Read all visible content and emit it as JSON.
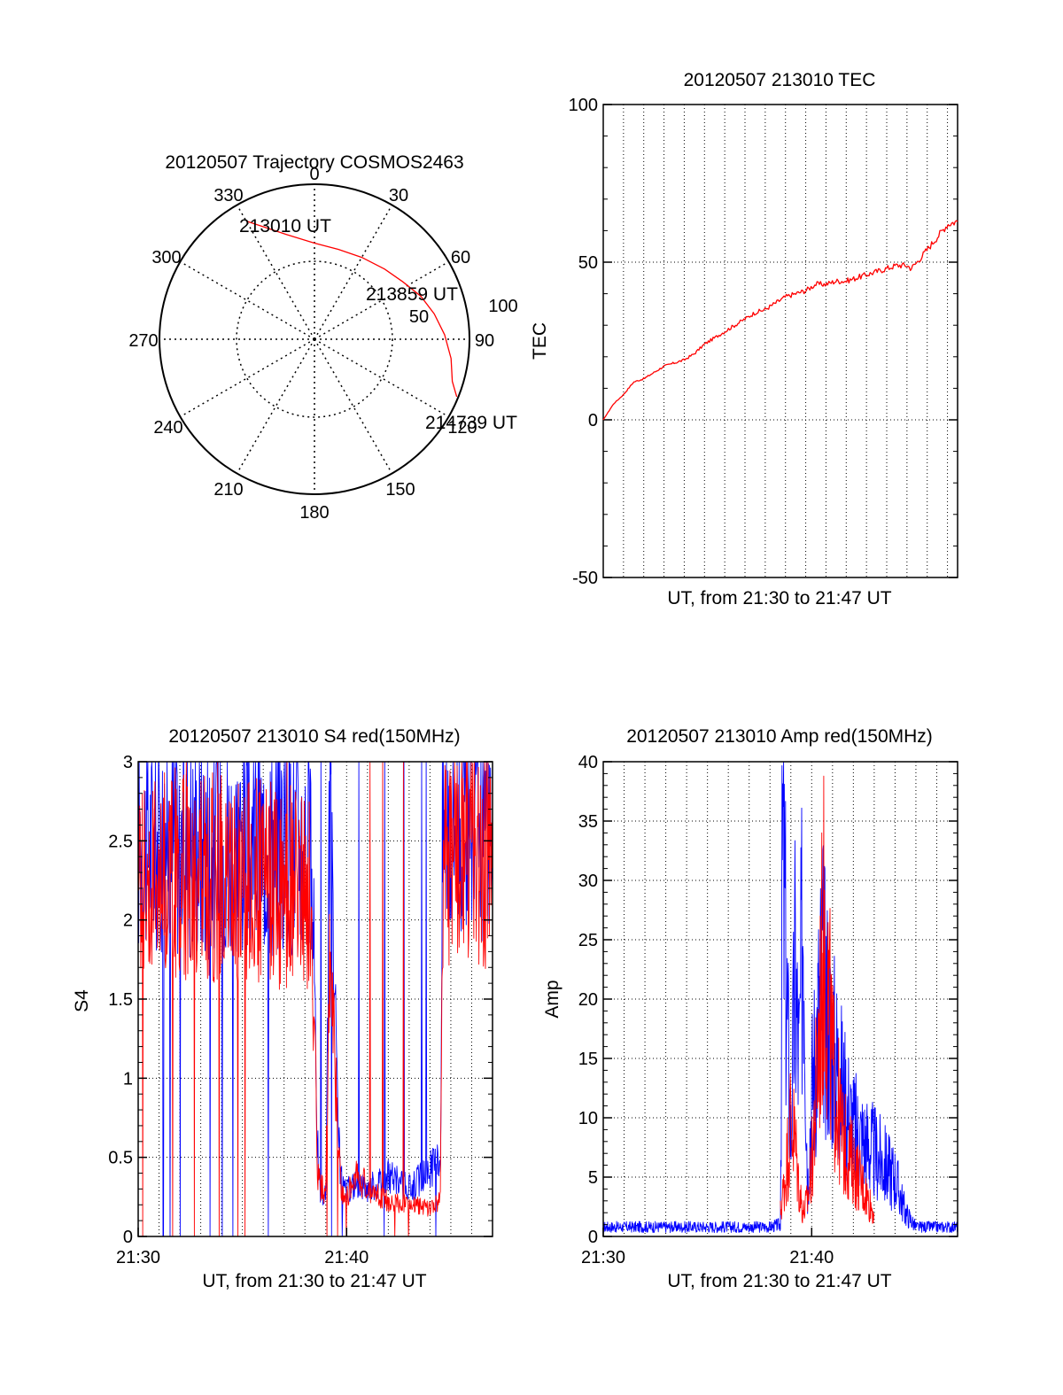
{
  "colors": {
    "red": "#ff0000",
    "blue": "#0000ff",
    "axis": "#000000",
    "grid": "#000000"
  },
  "chart_data": [
    {
      "id": "trajectory",
      "type": "polar",
      "title": "20120507 Trajectory COSMOS2463",
      "angle_labels": [
        "0",
        "30",
        "60",
        "90",
        "120",
        "150",
        "180",
        "210",
        "240",
        "270",
        "300",
        "330"
      ],
      "radial_labels": [
        "50",
        "100"
      ],
      "trajectory": {
        "series_color": "red",
        "points": [
          [
            330,
            88
          ],
          [
            345,
            70
          ],
          [
            0,
            62
          ],
          [
            15,
            60
          ],
          [
            30,
            61
          ],
          [
            45,
            64
          ],
          [
            57,
            68
          ],
          [
            68,
            74
          ],
          [
            78,
            79
          ],
          [
            88,
            84
          ],
          [
            98,
            89
          ],
          [
            107,
            93
          ],
          [
            112,
            99
          ]
        ],
        "annotations": [
          {
            "text": "213010 UT",
            "az": 330,
            "r": 88
          },
          {
            "text": "213859 UT",
            "az": 57,
            "r": 68
          },
          {
            "text": "214739 UT",
            "az": 112,
            "r": 99
          }
        ]
      }
    },
    {
      "id": "tec",
      "type": "line",
      "title": "20120507 213010 TEC",
      "xlabel": "UT, from 21:30 to 21:47 UT",
      "ylabel": "TEC",
      "xlim": [
        0,
        17.5
      ],
      "ylim": [
        -50,
        100
      ],
      "yticks": [
        "-50",
        "0",
        "50",
        "100"
      ],
      "series": [
        {
          "color": "red",
          "x": [
            0,
            0.5,
            1,
            1.5,
            2,
            2.5,
            3,
            3.5,
            4,
            4.5,
            5,
            5.5,
            6,
            6.5,
            7,
            7.5,
            8,
            8.5,
            9,
            9.5,
            10,
            10.5,
            11,
            11.5,
            12,
            12.5,
            13,
            13.5,
            14,
            14.5,
            15,
            15.2,
            15.5,
            16,
            16.5,
            17,
            17.5
          ],
          "y": [
            0,
            5,
            8,
            12,
            13,
            15,
            17,
            18,
            19,
            21,
            24,
            26,
            28,
            30,
            32,
            34,
            35,
            37,
            39,
            40,
            41,
            43,
            43,
            44,
            44,
            45,
            46,
            47,
            48,
            49,
            49,
            48,
            50,
            54,
            58,
            62,
            63
          ]
        }
      ]
    },
    {
      "id": "s4",
      "type": "line",
      "title": "20120507 213010 S4 red(150MHz)",
      "xlabel": "UT, from 21:30 to 21:47 UT",
      "ylabel": "S4",
      "xlim": [
        0,
        17
      ],
      "ylim": [
        0,
        3
      ],
      "yticks": [
        "0",
        "0.5",
        "1",
        "1.5",
        "2",
        "2.5",
        "3"
      ],
      "xticks": [
        {
          "value": 0,
          "label": "21:30"
        },
        {
          "value": 10,
          "label": "21:40"
        }
      ],
      "series": [
        {
          "color": "blue",
          "x": [
            0,
            8.2,
            8.5,
            8.6,
            8.7,
            9.0,
            9.2,
            9.4,
            9.6,
            9.8,
            10,
            10.5,
            11,
            12,
            13,
            14,
            14.5,
            14.6,
            14.8,
            17
          ],
          "y": [
            2.5,
            2.5,
            1.5,
            0.6,
            0.3,
            0.25,
            2.8,
            1.6,
            0.6,
            0.3,
            0.28,
            0.35,
            0.3,
            0.38,
            0.3,
            0.42,
            0.5,
            2.5,
            2.7,
            2.6
          ]
        },
        {
          "color": "red",
          "x": [
            0,
            8.2,
            8.5,
            8.6,
            8.8,
            9.0,
            9.2,
            9.4,
            9.6,
            9.8,
            10,
            10.5,
            11,
            12,
            13,
            14,
            14.5,
            14.6,
            14.8,
            17
          ],
          "y": [
            2.3,
            2.2,
            1.2,
            0.4,
            0.3,
            0.28,
            1.8,
            1.3,
            0.5,
            0.28,
            0.25,
            0.4,
            0.3,
            0.22,
            0.2,
            0.18,
            0.22,
            2.3,
            2.4,
            2.4
          ]
        }
      ]
    },
    {
      "id": "amp",
      "type": "line",
      "title": "20120507 213010 Amp red(150MHz)",
      "xlabel": "UT, from 21:30 to 21:47 UT",
      "ylabel": "Amp",
      "xlim": [
        0,
        17
      ],
      "ylim": [
        0,
        40
      ],
      "yticks": [
        "0",
        "5",
        "10",
        "15",
        "20",
        "25",
        "30",
        "35",
        "40"
      ],
      "xticks": [
        {
          "value": 0,
          "label": "21:30"
        },
        {
          "value": 10,
          "label": "21:40"
        }
      ],
      "series": [
        {
          "color": "blue",
          "x": [
            0,
            8,
            8.5,
            8.6,
            8.8,
            9.0,
            9.2,
            9.4,
            9.6,
            9.8,
            10,
            10.5,
            11,
            11.5,
            12,
            12.5,
            13,
            13.5,
            14,
            14.5,
            15,
            17
          ],
          "y": [
            0.8,
            0.8,
            1,
            33,
            20,
            8,
            22,
            14,
            30,
            4,
            12,
            22,
            16,
            12,
            9,
            8,
            7,
            6,
            5,
            2,
            0.8,
            0.8
          ]
        },
        {
          "color": "red",
          "x": [
            8.5,
            8.8,
            9.0,
            9.2,
            9.4,
            9.6,
            9.8,
            10,
            10.3,
            10.6,
            11,
            11.5,
            12,
            12.5,
            13
          ],
          "y": [
            2,
            6,
            10,
            8,
            4,
            2,
            3,
            6,
            15,
            26,
            14,
            8,
            6,
            4,
            2
          ]
        }
      ]
    }
  ]
}
